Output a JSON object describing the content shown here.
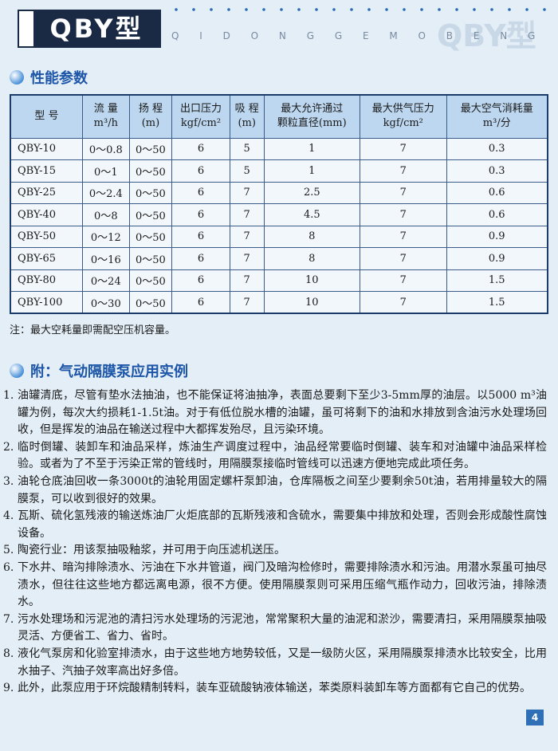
{
  "header": {
    "title": "QBY型",
    "letters": "Q I D O N G G E M O B E N G",
    "watermark": "QBY型"
  },
  "section1": {
    "title": "性能参数"
  },
  "table": {
    "headers": [
      [
        "型  号"
      ],
      [
        "流  量",
        "m³/h"
      ],
      [
        "扬  程",
        "(m)"
      ],
      [
        "出口压力",
        "kgf/cm²"
      ],
      [
        "吸  程",
        "(m)"
      ],
      [
        "最大允许通过",
        "颗粒直径(mm)"
      ],
      [
        "最大供气压力",
        "kgf/cm²"
      ],
      [
        "最大空气消耗量",
        "m³/分"
      ]
    ],
    "rows": [
      [
        "QBY-10",
        "0～0.8",
        "0～50",
        "6",
        "5",
        "1",
        "7",
        "0.3"
      ],
      [
        "QBY-15",
        "0～1",
        "0～50",
        "6",
        "5",
        "1",
        "7",
        "0.3"
      ],
      [
        "QBY-25",
        "0～2.4",
        "0～50",
        "6",
        "7",
        "2.5",
        "7",
        "0.6"
      ],
      [
        "QBY-40",
        "0～8",
        "0～50",
        "6",
        "7",
        "4.5",
        "7",
        "0.6"
      ],
      [
        "QBY-50",
        "0～12",
        "0～50",
        "6",
        "7",
        "8",
        "7",
        "0.9"
      ],
      [
        "QBY-65",
        "0～16",
        "0～50",
        "6",
        "7",
        "8",
        "7",
        "0.9"
      ],
      [
        "QBY-80",
        "0～24",
        "0～50",
        "6",
        "7",
        "10",
        "7",
        "1.5"
      ],
      [
        "QBY-100",
        "0～30",
        "0～50",
        "6",
        "7",
        "10",
        "7",
        "1.5"
      ]
    ]
  },
  "note": "注：最大空耗量即需配空压机容量。",
  "section2": {
    "title": "附：气动隔膜泵应用实例"
  },
  "items": [
    {
      "num": "1.",
      "text": "油罐清底，尽管有垫水法抽油，也不能保证将油抽净，表面总要剩下至少3-5mm厚的油层。以5000 m³油罐为例，每次大约损耗1-1.5t油。对于有低位脱水槽的油罐，虽可将剩下的油和水排放到含油污水处理场回收，但是挥发的油品在输送过程中大都挥发殆尽，且污染环境。"
    },
    {
      "num": "2.",
      "text": "临时倒罐、装卸车和油品采样，炼油生产调度过程中，油品经常要临时倒罐、装车和对油罐中油品采样检验。或者为了不至于污染正常的管线时，用隔膜泵接临时管线可以迅速方便地完成此项任务。"
    },
    {
      "num": "3.",
      "text": "油轮仓底油回收一条3000t的油轮用固定螺杆泵卸油，仓库隔板之间至少要剩余50t油，若用排量较大的隔膜泵，可以收到很好的效果。"
    },
    {
      "num": "4.",
      "text": "瓦斯、硫化氢残液的输送炼油厂火炬底部的瓦斯残液和含硫水，需要集中排放和处理，否则会形成酸性腐蚀设备。"
    },
    {
      "num": "5.",
      "text": "陶瓷行业：用该泵抽吸釉浆，并可用于向压滤机送压。"
    },
    {
      "num": "6.",
      "text": "下水井、暗沟排除渍水、污油在下水井管道，阀门及暗沟检修时，需要排除渍水和污油。用潜水泵虽可抽尽渍水，但往往这些地方都远离电源，很不方便。使用隔膜泵则可采用压缩气瓶作动力，回收污油，排除渍水。"
    },
    {
      "num": "7.",
      "text": "污水处理场和污泥池的清扫污水处理场的污泥池，常常聚积大量的油泥和淤沙，需要清扫，采用隔膜泵抽吸灵活、方便省工、省力、省时。"
    },
    {
      "num": "8.",
      "text": "液化气泵房和化验室排渍水，由于这些地方地势较低，又是一级防火区，采用隔膜泵排渍水比较安全，比用水抽子、汽抽子效率高出好多倍。"
    },
    {
      "num": "9.",
      "text": "此外，此泵应用于环烷酸精制转料，装车亚硫酸钠液体输送，苯类原料装卸车等方面都有它自己的优势。"
    }
  ],
  "page_number": "4"
}
